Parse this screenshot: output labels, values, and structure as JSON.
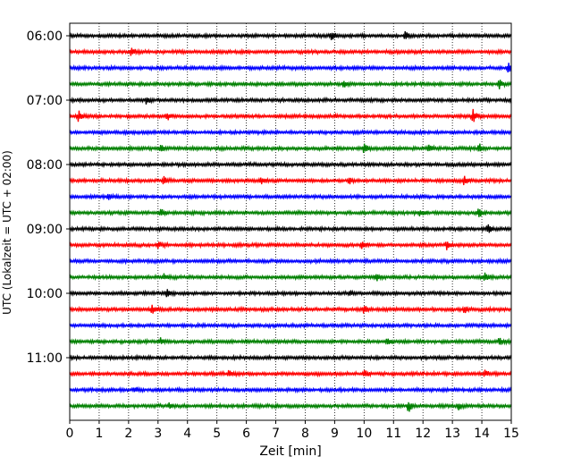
{
  "chart_data": {
    "type": "line",
    "title": "",
    "xlabel": "Zeit  [min]",
    "ylabel": "UTC (Lokalzeit = UTC + 02:00)",
    "xlim": [
      0,
      15
    ],
    "x_ticks": [
      0,
      1,
      2,
      3,
      4,
      5,
      6,
      7,
      8,
      9,
      10,
      11,
      12,
      13,
      14,
      15
    ],
    "x_grid": "dotted",
    "y_tick_labels": [
      "06:00",
      "07:00",
      "08:00",
      "09:00",
      "10:00",
      "11:00"
    ],
    "trace_minutes": 15,
    "colors": [
      "#000000",
      "#ff0000",
      "#0000ff",
      "#008000"
    ],
    "traces": [
      {
        "start": "06:00",
        "events": [
          {
            "t": 8.9,
            "amp": 0.6
          },
          {
            "t": 11.4,
            "amp": 0.7
          }
        ]
      },
      {
        "start": "06:15",
        "events": [
          {
            "t": 2.1,
            "amp": 0.7
          }
        ]
      },
      {
        "start": "06:30",
        "events": [
          {
            "t": 14.9,
            "amp": 0.7
          }
        ]
      },
      {
        "start": "06:45",
        "events": [
          {
            "t": 9.3,
            "amp": 0.5
          },
          {
            "t": 14.6,
            "amp": 0.6
          }
        ]
      },
      {
        "start": "07:00",
        "events": [
          {
            "t": 2.6,
            "amp": 0.5
          },
          {
            "t": 15.0,
            "amp": 0.5
          }
        ]
      },
      {
        "start": "07:15",
        "events": [
          {
            "t": 0.3,
            "amp": 0.8
          },
          {
            "t": 3.3,
            "amp": 0.6
          },
          {
            "t": 13.7,
            "amp": 1.0
          }
        ]
      },
      {
        "start": "07:30",
        "events": []
      },
      {
        "start": "07:45",
        "events": [
          {
            "t": 3.1,
            "amp": 0.5
          },
          {
            "t": 10.0,
            "amp": 0.6
          },
          {
            "t": 12.2,
            "amp": 0.5
          },
          {
            "t": 13.9,
            "amp": 0.6
          }
        ]
      },
      {
        "start": "08:00",
        "events": []
      },
      {
        "start": "08:15",
        "events": [
          {
            "t": 3.2,
            "amp": 0.6
          },
          {
            "t": 6.5,
            "amp": 0.5
          },
          {
            "t": 9.5,
            "amp": 0.5
          },
          {
            "t": 13.4,
            "amp": 0.6
          }
        ]
      },
      {
        "start": "08:30",
        "events": [
          {
            "t": 1.3,
            "amp": 0.4
          }
        ]
      },
      {
        "start": "08:45",
        "events": [
          {
            "t": 3.1,
            "amp": 0.6
          },
          {
            "t": 11.9,
            "amp": 0.5
          },
          {
            "t": 13.9,
            "amp": 0.7
          }
        ]
      },
      {
        "start": "09:00",
        "events": [
          {
            "t": 14.2,
            "amp": 0.6
          }
        ]
      },
      {
        "start": "09:15",
        "events": [
          {
            "t": 3.0,
            "amp": 0.5
          },
          {
            "t": 9.9,
            "amp": 0.6
          },
          {
            "t": 12.8,
            "amp": 0.6
          }
        ]
      },
      {
        "start": "09:30",
        "events": []
      },
      {
        "start": "09:45",
        "events": [
          {
            "t": 3.2,
            "amp": 0.5
          },
          {
            "t": 10.4,
            "amp": 0.5
          },
          {
            "t": 14.1,
            "amp": 0.5
          }
        ]
      },
      {
        "start": "10:00",
        "events": [
          {
            "t": 3.3,
            "amp": 0.5
          },
          {
            "t": 9.5,
            "amp": 0.4
          }
        ]
      },
      {
        "start": "10:15",
        "events": [
          {
            "t": 2.8,
            "amp": 0.6
          },
          {
            "t": 10.0,
            "amp": 0.6
          },
          {
            "t": 13.4,
            "amp": 0.5
          }
        ]
      },
      {
        "start": "10:30",
        "events": []
      },
      {
        "start": "10:45",
        "events": [
          {
            "t": 3.1,
            "amp": 0.5
          },
          {
            "t": 10.8,
            "amp": 0.6
          },
          {
            "t": 14.6,
            "amp": 0.6
          }
        ]
      },
      {
        "start": "11:00",
        "events": []
      },
      {
        "start": "11:15",
        "events": [
          {
            "t": 5.4,
            "amp": 0.5
          },
          {
            "t": 10.0,
            "amp": 0.5
          },
          {
            "t": 14.1,
            "amp": 0.5
          }
        ]
      },
      {
        "start": "11:30",
        "events": [
          {
            "t": 2.2,
            "amp": 0.4
          }
        ]
      },
      {
        "start": "11:45",
        "events": [
          {
            "t": 3.4,
            "amp": 0.5
          },
          {
            "t": 11.5,
            "amp": 1.0
          },
          {
            "t": 13.2,
            "amp": 0.5
          }
        ]
      }
    ]
  }
}
